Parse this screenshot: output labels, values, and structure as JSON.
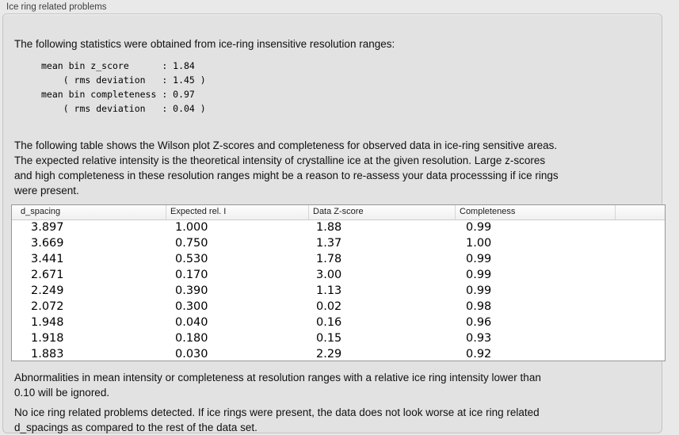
{
  "panel": {
    "title": "Ice ring related problems"
  },
  "intro": "The following statistics were obtained from ice-ring insensitive resolution ranges:",
  "stats_block": "mean bin z_score      : 1.84\n    ( rms deviation   : 1.45 )\nmean bin completeness : 0.97\n    ( rms deviation   : 0.04 )",
  "description_lines": [
    "The following table shows the Wilson plot Z-scores and completeness for observed data in ice-ring sensitive areas.",
    "The expected relative intensity is the theoretical intensity of crystalline ice at the given resolution. Large z-scores",
    "and high completeness in these resolution ranges might be a reason to re-assess your data processsing if ice rings",
    "were present."
  ],
  "table": {
    "columns": [
      "d_spacing",
      "Expected rel. I",
      "Data Z-score",
      "Completeness"
    ],
    "rows": [
      [
        "3.897",
        "1.000",
        "1.88",
        "0.99"
      ],
      [
        "3.669",
        "0.750",
        "1.37",
        "1.00"
      ],
      [
        "3.441",
        "0.530",
        "1.78",
        "0.99"
      ],
      [
        "2.671",
        "0.170",
        "3.00",
        "0.99"
      ],
      [
        "2.249",
        "0.390",
        "1.13",
        "0.99"
      ],
      [
        "2.072",
        "0.300",
        "0.02",
        "0.98"
      ],
      [
        "1.948",
        "0.040",
        "0.16",
        "0.96"
      ],
      [
        "1.918",
        "0.180",
        "0.15",
        "0.93"
      ],
      [
        "1.883",
        "0.030",
        "2.29",
        "0.92"
      ]
    ]
  },
  "note_lines": [
    "Abnormalities in mean intensity or completeness at resolution ranges with a relative ice ring intensity lower than",
    "0.10 will be ignored."
  ],
  "conclusion_lines": [
    "No ice ring related problems detected. If ice rings were present, the data does not look worse at ice ring related",
    "d_spacings as compared to the rest of the data set."
  ],
  "colors": {
    "page_background": "#e9e9e9",
    "groupbox_background": "#e2e2e2",
    "table_background": "#ffffff",
    "table_border": "#979797"
  }
}
